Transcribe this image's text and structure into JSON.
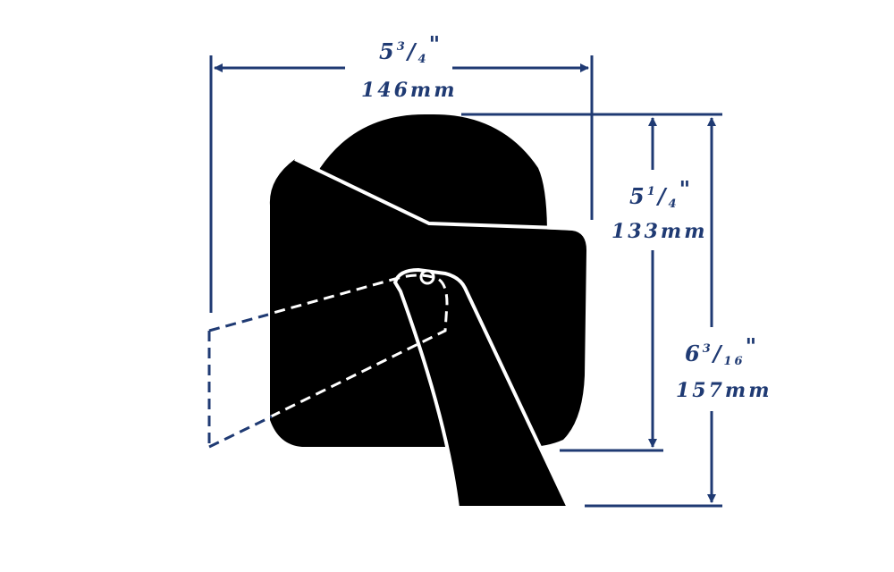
{
  "colors": {
    "dimension_line": "#1f3a73",
    "silhouette": "#000000",
    "background": "#ffffff",
    "outline": "#ffffff"
  },
  "dimensions": {
    "width": {
      "whole": "5",
      "num": "3",
      "den": "4",
      "inch_mark": "\"",
      "metric": "146mm"
    },
    "height_body": {
      "whole": "5",
      "num": "1",
      "den": "4",
      "inch_mark": "\"",
      "metric": "133mm"
    },
    "height_total": {
      "whole": "6",
      "num": "3",
      "den": "16",
      "inch_mark": "\"",
      "metric": "157mm"
    }
  }
}
